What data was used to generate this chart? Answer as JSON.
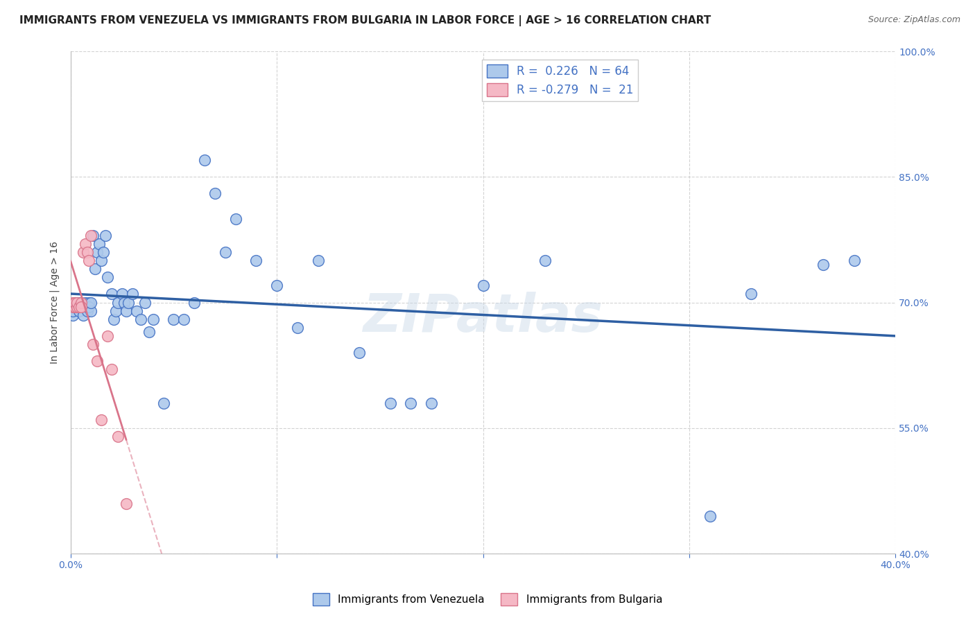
{
  "title": "IMMIGRANTS FROM VENEZUELA VS IMMIGRANTS FROM BULGARIA IN LABOR FORCE | AGE > 16 CORRELATION CHART",
  "source": "Source: ZipAtlas.com",
  "ylabel": "In Labor Force | Age > 16",
  "xlim": [
    0.0,
    0.4
  ],
  "ylim": [
    0.4,
    1.0
  ],
  "xticks": [
    0.0,
    0.1,
    0.2,
    0.3,
    0.4
  ],
  "yticks": [
    0.4,
    0.55,
    0.7,
    0.85,
    1.0
  ],
  "background_color": "#ffffff",
  "grid_color": "#c8c8c8",
  "watermark": "ZIPatlas",
  "venezuela_color": "#adc9eb",
  "venezuela_edge_color": "#4472c4",
  "venezuela_line_color": "#2e5fa3",
  "bulgaria_color": "#f5b8c5",
  "bulgaria_edge_color": "#d9748a",
  "bulgaria_line_color": "#d9748a",
  "R_venezuela": 0.226,
  "N_venezuela": 64,
  "R_bulgaria": -0.279,
  "N_bulgaria": 21,
  "venezuela_x": [
    0.001,
    0.001,
    0.002,
    0.002,
    0.003,
    0.003,
    0.004,
    0.004,
    0.005,
    0.005,
    0.006,
    0.006,
    0.007,
    0.007,
    0.008,
    0.008,
    0.009,
    0.009,
    0.01,
    0.01,
    0.011,
    0.012,
    0.013,
    0.014,
    0.015,
    0.016,
    0.017,
    0.018,
    0.02,
    0.021,
    0.022,
    0.023,
    0.025,
    0.026,
    0.027,
    0.028,
    0.03,
    0.032,
    0.034,
    0.036,
    0.038,
    0.04,
    0.045,
    0.05,
    0.055,
    0.06,
    0.065,
    0.07,
    0.075,
    0.08,
    0.09,
    0.1,
    0.11,
    0.12,
    0.14,
    0.155,
    0.165,
    0.175,
    0.2,
    0.23,
    0.31,
    0.33,
    0.365,
    0.38
  ],
  "venezuela_y": [
    0.685,
    0.69,
    0.695,
    0.7,
    0.695,
    0.7,
    0.69,
    0.7,
    0.695,
    0.7,
    0.695,
    0.685,
    0.695,
    0.7,
    0.69,
    0.695,
    0.7,
    0.695,
    0.69,
    0.7,
    0.78,
    0.74,
    0.76,
    0.77,
    0.75,
    0.76,
    0.78,
    0.73,
    0.71,
    0.68,
    0.69,
    0.7,
    0.71,
    0.7,
    0.69,
    0.7,
    0.71,
    0.69,
    0.68,
    0.7,
    0.665,
    0.68,
    0.58,
    0.68,
    0.68,
    0.7,
    0.87,
    0.83,
    0.76,
    0.8,
    0.75,
    0.72,
    0.67,
    0.75,
    0.64,
    0.58,
    0.58,
    0.58,
    0.72,
    0.75,
    0.445,
    0.71,
    0.745,
    0.75
  ],
  "bulgaria_x": [
    0.001,
    0.001,
    0.002,
    0.002,
    0.003,
    0.003,
    0.004,
    0.005,
    0.005,
    0.006,
    0.007,
    0.008,
    0.009,
    0.01,
    0.011,
    0.013,
    0.015,
    0.018,
    0.02,
    0.023,
    0.027
  ],
  "bulgaria_y": [
    0.695,
    0.7,
    0.695,
    0.7,
    0.695,
    0.7,
    0.695,
    0.7,
    0.695,
    0.76,
    0.77,
    0.76,
    0.75,
    0.78,
    0.65,
    0.63,
    0.56,
    0.66,
    0.62,
    0.54,
    0.46
  ],
  "legend_venezuela_label": "R =  0.226   N = 64",
  "legend_bulgaria_label": "R = -0.279   N =  21",
  "title_fontsize": 11,
  "axis_label_fontsize": 10,
  "tick_fontsize": 10,
  "tick_color": "#4472c4",
  "ylabel_color": "#444444"
}
